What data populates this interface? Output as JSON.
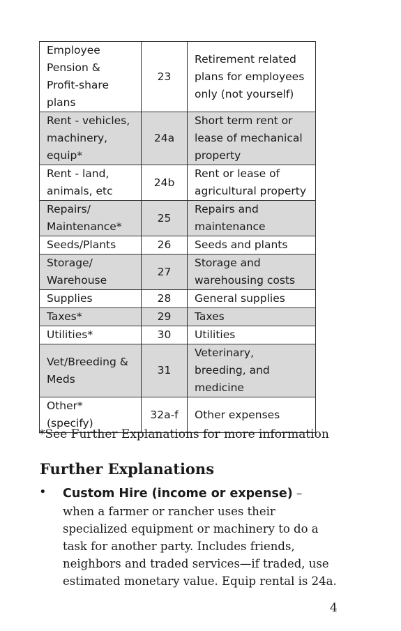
{
  "table": {
    "rows": [
      {
        "category": "Employee\nPension &\nProfit-share\nplans",
        "line": "23",
        "description": "Retirement related\nplans for employees\nonly (not yourself)",
        "shaded": false
      },
      {
        "category": "Rent - vehicles,\nmachinery,\nequip*",
        "line": "24a",
        "description": "Short term rent or\nlease of mechanical\nproperty",
        "shaded": true
      },
      {
        "category": "Rent - land,\nanimals, etc",
        "line": "24b",
        "description": "Rent or lease of\nagricultural property",
        "shaded": false
      },
      {
        "category": "Repairs/\nMaintenance*",
        "line": "25",
        "description": "Repairs and\nmaintenance",
        "shaded": true
      },
      {
        "category": "Seeds/Plants",
        "line": "26",
        "description": "Seeds and plants",
        "shaded": false
      },
      {
        "category": "Storage/\nWarehouse",
        "line": "27",
        "description": "Storage and\nwarehousing costs",
        "shaded": true
      },
      {
        "category": "Supplies",
        "line": "28",
        "description": "General supplies",
        "shaded": false
      },
      {
        "category": "Taxes*",
        "line": "29",
        "description": "Taxes",
        "shaded": true
      },
      {
        "category": "Utilities*",
        "line": "30",
        "description": "Utilities",
        "shaded": false
      },
      {
        "category": "Vet/Breeding &\nMeds",
        "line": "31",
        "description": "Veterinary,\nbreeding, and\nmedicine",
        "shaded": true
      },
      {
        "category": "Other*\n(specify)",
        "line": "32a-f",
        "description": "Other expenses",
        "shaded": false
      }
    ]
  },
  "footnote": "*See Further Explanations for more information",
  "section_title": "Further Explanations",
  "bullet": {
    "term": "Custom Hire (income or expense)",
    "dash": " –",
    "lines": [
      "when a farmer or rancher uses their",
      "specialized equipment or machinery to do a",
      "task for another party. Includes friends,",
      "neighbors and traded services—if traded, use",
      "estimated monetary value. Equip rental is 24a."
    ]
  },
  "page_number": "4",
  "colors": {
    "shaded_row": "#d9d9d9",
    "border": "#333333"
  }
}
